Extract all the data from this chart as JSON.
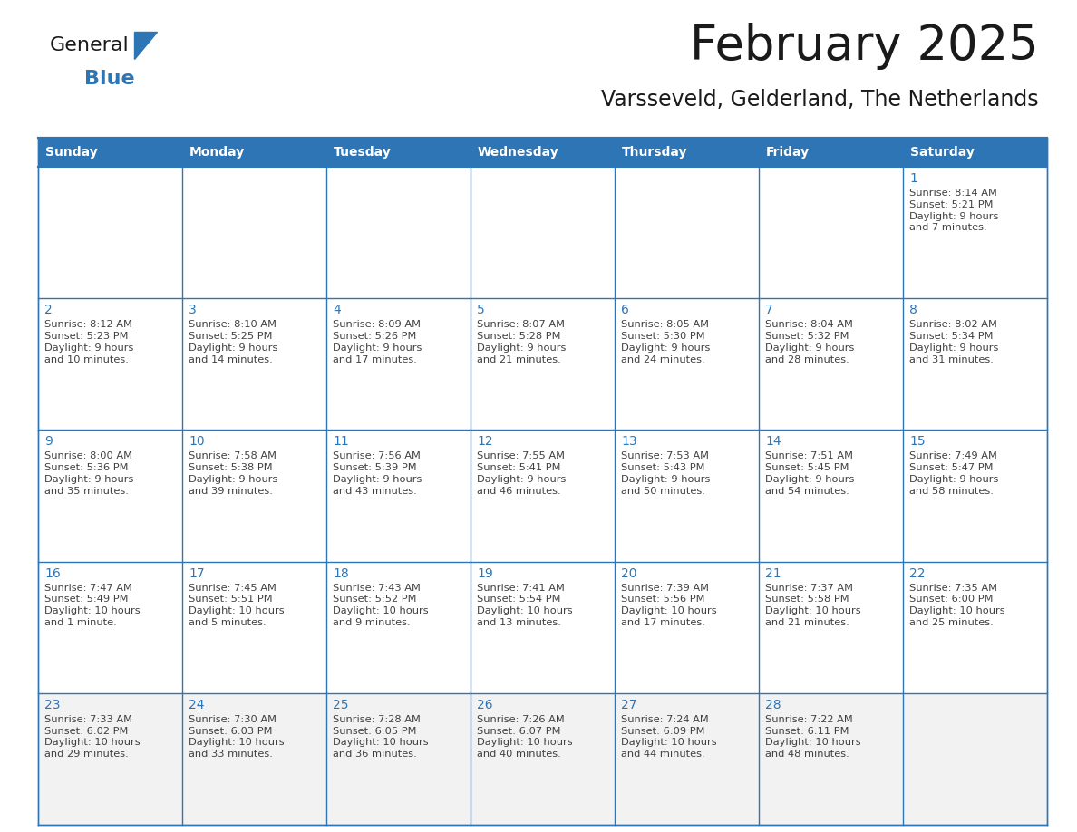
{
  "title": "February 2025",
  "subtitle": "Varsseveld, Gelderland, The Netherlands",
  "days_of_week": [
    "Sunday",
    "Monday",
    "Tuesday",
    "Wednesday",
    "Thursday",
    "Friday",
    "Saturday"
  ],
  "header_bg": "#2E75B6",
  "header_text": "#FFFFFF",
  "cell_border": "#2E75B6",
  "day_number_color": "#2E75B6",
  "cell_text_color": "#404040",
  "bg_color": "#FFFFFF",
  "last_row_bg": "#F2F2F2",
  "calendar_data": [
    [
      {
        "day": "",
        "info": ""
      },
      {
        "day": "",
        "info": ""
      },
      {
        "day": "",
        "info": ""
      },
      {
        "day": "",
        "info": ""
      },
      {
        "day": "",
        "info": ""
      },
      {
        "day": "",
        "info": ""
      },
      {
        "day": "1",
        "info": "Sunrise: 8:14 AM\nSunset: 5:21 PM\nDaylight: 9 hours\nand 7 minutes."
      }
    ],
    [
      {
        "day": "2",
        "info": "Sunrise: 8:12 AM\nSunset: 5:23 PM\nDaylight: 9 hours\nand 10 minutes."
      },
      {
        "day": "3",
        "info": "Sunrise: 8:10 AM\nSunset: 5:25 PM\nDaylight: 9 hours\nand 14 minutes."
      },
      {
        "day": "4",
        "info": "Sunrise: 8:09 AM\nSunset: 5:26 PM\nDaylight: 9 hours\nand 17 minutes."
      },
      {
        "day": "5",
        "info": "Sunrise: 8:07 AM\nSunset: 5:28 PM\nDaylight: 9 hours\nand 21 minutes."
      },
      {
        "day": "6",
        "info": "Sunrise: 8:05 AM\nSunset: 5:30 PM\nDaylight: 9 hours\nand 24 minutes."
      },
      {
        "day": "7",
        "info": "Sunrise: 8:04 AM\nSunset: 5:32 PM\nDaylight: 9 hours\nand 28 minutes."
      },
      {
        "day": "8",
        "info": "Sunrise: 8:02 AM\nSunset: 5:34 PM\nDaylight: 9 hours\nand 31 minutes."
      }
    ],
    [
      {
        "day": "9",
        "info": "Sunrise: 8:00 AM\nSunset: 5:36 PM\nDaylight: 9 hours\nand 35 minutes."
      },
      {
        "day": "10",
        "info": "Sunrise: 7:58 AM\nSunset: 5:38 PM\nDaylight: 9 hours\nand 39 minutes."
      },
      {
        "day": "11",
        "info": "Sunrise: 7:56 AM\nSunset: 5:39 PM\nDaylight: 9 hours\nand 43 minutes."
      },
      {
        "day": "12",
        "info": "Sunrise: 7:55 AM\nSunset: 5:41 PM\nDaylight: 9 hours\nand 46 minutes."
      },
      {
        "day": "13",
        "info": "Sunrise: 7:53 AM\nSunset: 5:43 PM\nDaylight: 9 hours\nand 50 minutes."
      },
      {
        "day": "14",
        "info": "Sunrise: 7:51 AM\nSunset: 5:45 PM\nDaylight: 9 hours\nand 54 minutes."
      },
      {
        "day": "15",
        "info": "Sunrise: 7:49 AM\nSunset: 5:47 PM\nDaylight: 9 hours\nand 58 minutes."
      }
    ],
    [
      {
        "day": "16",
        "info": "Sunrise: 7:47 AM\nSunset: 5:49 PM\nDaylight: 10 hours\nand 1 minute."
      },
      {
        "day": "17",
        "info": "Sunrise: 7:45 AM\nSunset: 5:51 PM\nDaylight: 10 hours\nand 5 minutes."
      },
      {
        "day": "18",
        "info": "Sunrise: 7:43 AM\nSunset: 5:52 PM\nDaylight: 10 hours\nand 9 minutes."
      },
      {
        "day": "19",
        "info": "Sunrise: 7:41 AM\nSunset: 5:54 PM\nDaylight: 10 hours\nand 13 minutes."
      },
      {
        "day": "20",
        "info": "Sunrise: 7:39 AM\nSunset: 5:56 PM\nDaylight: 10 hours\nand 17 minutes."
      },
      {
        "day": "21",
        "info": "Sunrise: 7:37 AM\nSunset: 5:58 PM\nDaylight: 10 hours\nand 21 minutes."
      },
      {
        "day": "22",
        "info": "Sunrise: 7:35 AM\nSunset: 6:00 PM\nDaylight: 10 hours\nand 25 minutes."
      }
    ],
    [
      {
        "day": "23",
        "info": "Sunrise: 7:33 AM\nSunset: 6:02 PM\nDaylight: 10 hours\nand 29 minutes."
      },
      {
        "day": "24",
        "info": "Sunrise: 7:30 AM\nSunset: 6:03 PM\nDaylight: 10 hours\nand 33 minutes."
      },
      {
        "day": "25",
        "info": "Sunrise: 7:28 AM\nSunset: 6:05 PM\nDaylight: 10 hours\nand 36 minutes."
      },
      {
        "day": "26",
        "info": "Sunrise: 7:26 AM\nSunset: 6:07 PM\nDaylight: 10 hours\nand 40 minutes."
      },
      {
        "day": "27",
        "info": "Sunrise: 7:24 AM\nSunset: 6:09 PM\nDaylight: 10 hours\nand 44 minutes."
      },
      {
        "day": "28",
        "info": "Sunrise: 7:22 AM\nSunset: 6:11 PM\nDaylight: 10 hours\nand 48 minutes."
      },
      {
        "day": "",
        "info": ""
      }
    ]
  ]
}
